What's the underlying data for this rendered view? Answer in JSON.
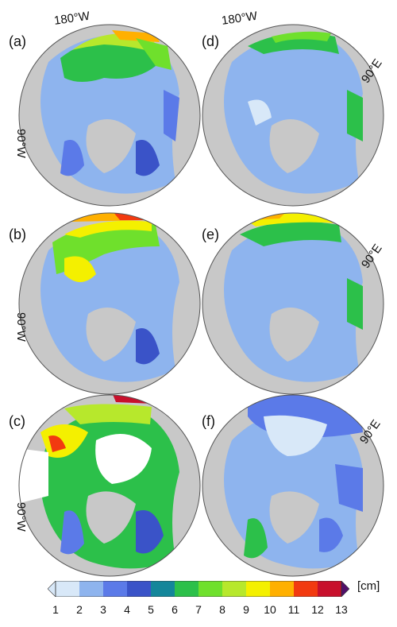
{
  "panels": [
    {
      "id": "a",
      "label": "(a)",
      "lon_labels": [
        "180°W",
        "90°W"
      ]
    },
    {
      "id": "d",
      "label": "(d)",
      "lon_labels": [
        "180°W",
        "90°E"
      ]
    },
    {
      "id": "b",
      "label": "(b)",
      "lon_labels": [
        "90°W"
      ]
    },
    {
      "id": "e",
      "label": "(e)",
      "lon_labels": [
        "90°E"
      ]
    },
    {
      "id": "c",
      "label": "(c)",
      "lon_labels": [
        "90°W"
      ]
    },
    {
      "id": "f",
      "label": "(f)",
      "lon_labels": [
        "90°E"
      ]
    }
  ],
  "colorbar": {
    "ticks": [
      "1",
      "2",
      "3",
      "4",
      "5",
      "6",
      "7",
      "8",
      "9",
      "10",
      "11",
      "12",
      "13"
    ],
    "unit": "[cm]",
    "colors": [
      "#d8e8f8",
      "#8eb4ee",
      "#5b7ae8",
      "#3a53c8",
      "#14869a",
      "#2cc04a",
      "#6fe02c",
      "#b7e82c",
      "#f4f000",
      "#ffb000",
      "#f23a10",
      "#c8102c",
      "#50106a"
    ]
  },
  "land_color": "#c8c8c8",
  "ocean_color": "#8eb4ee"
}
